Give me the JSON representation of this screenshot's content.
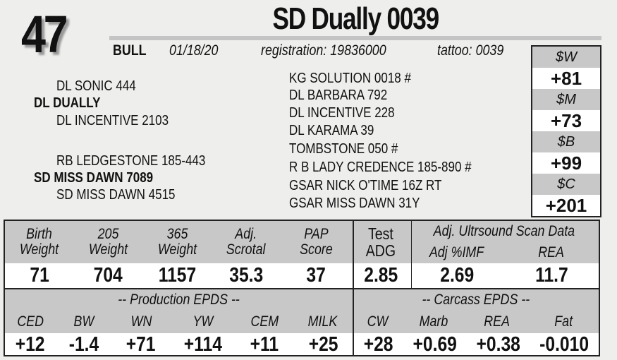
{
  "lot": "47",
  "name": "SD Dually 0039",
  "info": {
    "sex": "BULL",
    "birthdate": "01/18/20",
    "registration": "registration:  19836000",
    "tattoo": "tattoo: 0039"
  },
  "pedigree": {
    "sire_sire": "DL SONIC 444",
    "sire": "DL DUALLY",
    "sire_dam": "DL INCENTIVE 2103",
    "dam_sire": "RB LEDGESTONE 185-443",
    "dam": "SD MISS DAWN 7089",
    "dam_dam": "SD MISS DAWN 4515",
    "great": [
      "KG SOLUTION 0018 #",
      "DL BARBARA 792",
      "DL INCENTIVE 228",
      "DL KARAMA 39",
      "TOMBSTONE 050 #",
      "R B LADY CREDENCE 185-890 #",
      "GSAR NICK O'TIME 16Z RT",
      "GSAR MISS DAWN 31Y"
    ]
  },
  "indexes": [
    {
      "label": "$W",
      "value": "+81"
    },
    {
      "label": "$M",
      "value": "+73"
    },
    {
      "label": "$B",
      "value": "+99"
    },
    {
      "label": "$C",
      "value": "+201"
    }
  ],
  "performance": {
    "headers": [
      [
        "Birth",
        "Weight"
      ],
      [
        "205",
        "Weight"
      ],
      [
        "365",
        "Weight"
      ],
      [
        "Adj.",
        "Scrotal"
      ],
      [
        "PAP",
        "Score"
      ]
    ],
    "values": [
      "71",
      "704",
      "1157",
      "35.3",
      "37"
    ],
    "adg": {
      "header": [
        "Test",
        "ADG"
      ],
      "value": "2.85"
    },
    "ultrasound": {
      "title": "Adj. Ultrsound Scan Data",
      "headers": [
        "Adj %IMF",
        "REA"
      ],
      "values": [
        "2.69",
        "11.7"
      ]
    }
  },
  "production_epds": {
    "title": "-- Production EPDS --",
    "headers": [
      "CED",
      "BW",
      "WN",
      "YW",
      "CEM",
      "MILK"
    ],
    "values": [
      "+12",
      "-1.4",
      "+71",
      "+114",
      "+11",
      "+25"
    ]
  },
  "carcass_epds": {
    "title": "-- Carcass EPDS --",
    "headers": [
      "CW",
      "Marb",
      "REA",
      "Fat"
    ],
    "values": [
      "+28",
      "+0.69",
      "+0.38",
      "-0.010"
    ]
  }
}
